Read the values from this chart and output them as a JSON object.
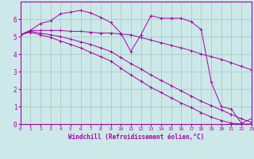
{
  "bg_color": "#cce8e8",
  "grid_color": "#aacccc",
  "line_color": "#aa00aa",
  "xlabel": "Windchill (Refroidissement éolien,°C)",
  "xlim": [
    0,
    23
  ],
  "ylim": [
    0,
    7
  ],
  "xticks": [
    0,
    1,
    2,
    3,
    4,
    5,
    6,
    7,
    8,
    9,
    10,
    11,
    12,
    13,
    14,
    15,
    16,
    17,
    18,
    19,
    20,
    21,
    22,
    23
  ],
  "yticks": [
    0,
    1,
    2,
    3,
    4,
    5,
    6
  ],
  "series": [
    {
      "x": [
        0,
        1,
        2,
        3,
        4,
        5,
        6,
        7,
        8,
        9,
        10,
        11,
        12,
        13,
        14,
        15,
        16,
        17,
        18,
        19,
        20,
        21,
        22,
        23
      ],
      "y": [
        5.1,
        5.35,
        5.75,
        5.9,
        6.3,
        6.4,
        6.5,
        6.35,
        6.1,
        5.8,
        5.2,
        4.15,
        5.1,
        6.2,
        6.05,
        6.05,
        6.05,
        5.85,
        5.4,
        2.4,
        1.0,
        0.85,
        0.05,
        0.3
      ]
    },
    {
      "x": [
        0,
        1,
        2,
        3,
        4,
        5,
        6,
        7,
        8,
        9,
        10,
        11,
        12,
        13,
        14,
        15,
        16,
        17,
        18,
        19,
        20,
        21,
        22,
        23
      ],
      "y": [
        5.1,
        5.35,
        5.35,
        5.35,
        5.35,
        5.3,
        5.3,
        5.25,
        5.2,
        5.2,
        5.15,
        5.1,
        4.95,
        4.8,
        4.65,
        4.5,
        4.35,
        4.2,
        4.0,
        3.85,
        3.7,
        3.5,
        3.3,
        3.1
      ]
    },
    {
      "x": [
        0,
        1,
        2,
        3,
        4,
        5,
        6,
        7,
        8,
        9,
        10,
        11,
        12,
        13,
        14,
        15,
        16,
        17,
        18,
        19,
        20,
        21,
        22,
        23
      ],
      "y": [
        5.1,
        5.3,
        5.2,
        5.1,
        5.0,
        4.85,
        4.7,
        4.55,
        4.35,
        4.15,
        3.8,
        3.45,
        3.15,
        2.8,
        2.5,
        2.2,
        1.9,
        1.6,
        1.3,
        1.05,
        0.8,
        0.55,
        0.3,
        0.1
      ]
    },
    {
      "x": [
        0,
        1,
        2,
        3,
        4,
        5,
        6,
        7,
        8,
        9,
        10,
        11,
        12,
        13,
        14,
        15,
        16,
        17,
        18,
        19,
        20,
        21,
        22,
        23
      ],
      "y": [
        5.1,
        5.25,
        5.1,
        4.95,
        4.75,
        4.55,
        4.35,
        4.1,
        3.85,
        3.6,
        3.2,
        2.8,
        2.45,
        2.1,
        1.8,
        1.5,
        1.2,
        0.95,
        0.65,
        0.4,
        0.2,
        0.05,
        0.0,
        0.0
      ]
    }
  ]
}
